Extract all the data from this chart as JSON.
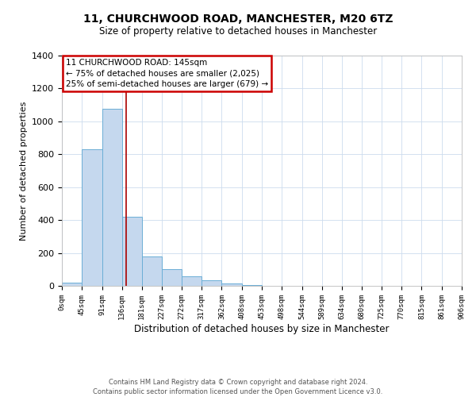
{
  "title": "11, CHURCHWOOD ROAD, MANCHESTER, M20 6TZ",
  "subtitle": "Size of property relative to detached houses in Manchester",
  "bar_heights": [
    20,
    830,
    1075,
    420,
    180,
    100,
    58,
    35,
    15,
    5,
    0,
    0,
    0,
    0,
    0,
    0,
    0,
    0,
    0,
    0
  ],
  "bin_edges": [
    0,
    45,
    91,
    136,
    181,
    227,
    272,
    317,
    362,
    408,
    453,
    498,
    544,
    589,
    634,
    680,
    725,
    770,
    815,
    861,
    906
  ],
  "bin_labels": [
    "0sqm",
    "45sqm",
    "91sqm",
    "136sqm",
    "181sqm",
    "227sqm",
    "272sqm",
    "317sqm",
    "362sqm",
    "408sqm",
    "453sqm",
    "498sqm",
    "544sqm",
    "589sqm",
    "634sqm",
    "680sqm",
    "725sqm",
    "770sqm",
    "815sqm",
    "861sqm",
    "906sqm"
  ],
  "bar_color": "#c5d8ee",
  "bar_edge_color": "#6baed6",
  "vline_x": 145,
  "vline_color": "#aa0000",
  "ylabel": "Number of detached properties",
  "xlabel": "Distribution of detached houses by size in Manchester",
  "ylim": [
    0,
    1400
  ],
  "yticks": [
    0,
    200,
    400,
    600,
    800,
    1000,
    1200,
    1400
  ],
  "annotation_title": "11 CHURCHWOOD ROAD: 145sqm",
  "annotation_line1": "← 75% of detached houses are smaller (2,025)",
  "annotation_line2": "25% of semi-detached houses are larger (679) →",
  "annotation_box_color": "#cc0000",
  "footer_line1": "Contains HM Land Registry data © Crown copyright and database right 2024.",
  "footer_line2": "Contains public sector information licensed under the Open Government Licence v3.0.",
  "background_color": "#ffffff",
  "grid_color": "#ccdcee"
}
